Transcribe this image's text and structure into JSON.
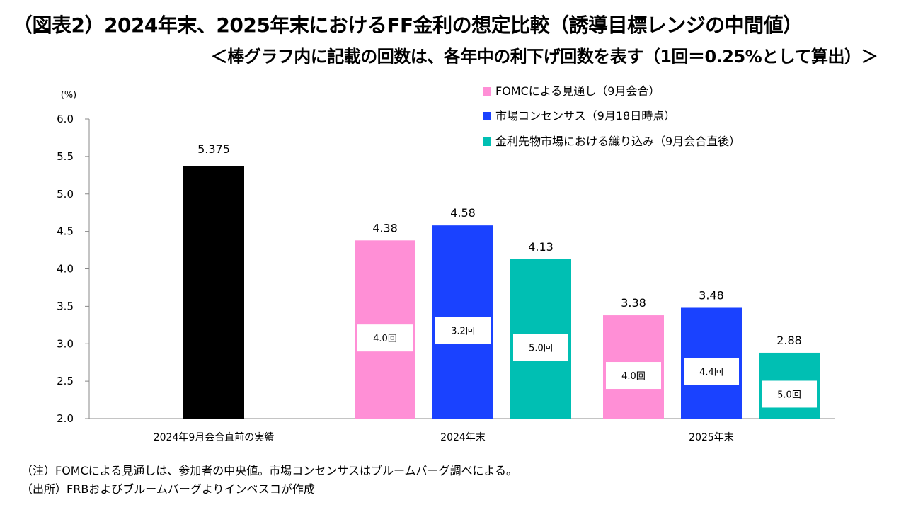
{
  "title": "（図表2）2024年末、2025年末におけるFF金利の想定比較（誘導目標レンジの中間値）",
  "subtitle": "＜棒グラフ内に記載の回数は、各年中の利下げ回数を表す（1回＝0.25%として算出）＞",
  "notes": [
    "（注）FOMCによる見通しは、参加者の中央値。市場コンセンサスはブルームバーグ調べによる。",
    "（出所）FRBおよびブルームバーグよりインベスコが作成"
  ],
  "colors": {
    "actual": "#000000",
    "fomc": "#ff8fd6",
    "consensus": "#1a42ff",
    "futures": "#00bfb3",
    "axis": "#888888"
  },
  "chart_data": {
    "type": "bar",
    "ylabel": "(%)",
    "ylim": [
      2.0,
      6.0
    ],
    "yticks": [
      "2.0",
      "2.5",
      "3.0",
      "3.5",
      "4.0",
      "4.5",
      "5.0",
      "5.5",
      "6.0"
    ],
    "grid": false,
    "legend_position": "top-right",
    "categories": [
      "2024年9月会合直前の実績",
      "2024年末",
      "2025年末"
    ],
    "actual": {
      "category": "2024年9月会合直前の実績",
      "value": 5.375,
      "value_label": "5.375"
    },
    "series": [
      {
        "name": "FOMCによる見通し（9月会合）",
        "color_key": "fomc",
        "values": [
          null,
          4.38,
          3.38
        ],
        "value_labels": [
          "",
          "4.38",
          "3.38"
        ],
        "cuts": [
          "",
          "4.0回",
          "4.0回"
        ]
      },
      {
        "name": "市場コンセンサス（9月18日時点）",
        "color_key": "consensus",
        "values": [
          null,
          4.58,
          3.48
        ],
        "value_labels": [
          "",
          "4.58",
          "3.48"
        ],
        "cuts": [
          "",
          "3.2回",
          "4.4回"
        ]
      },
      {
        "name": "金利先物市場における織り込み（9月会合直後）",
        "color_key": "futures",
        "values": [
          null,
          4.13,
          2.88
        ],
        "value_labels": [
          "",
          "4.13",
          "2.88"
        ],
        "cuts": [
          "",
          "5.0回",
          "5.0回"
        ]
      }
    ]
  }
}
